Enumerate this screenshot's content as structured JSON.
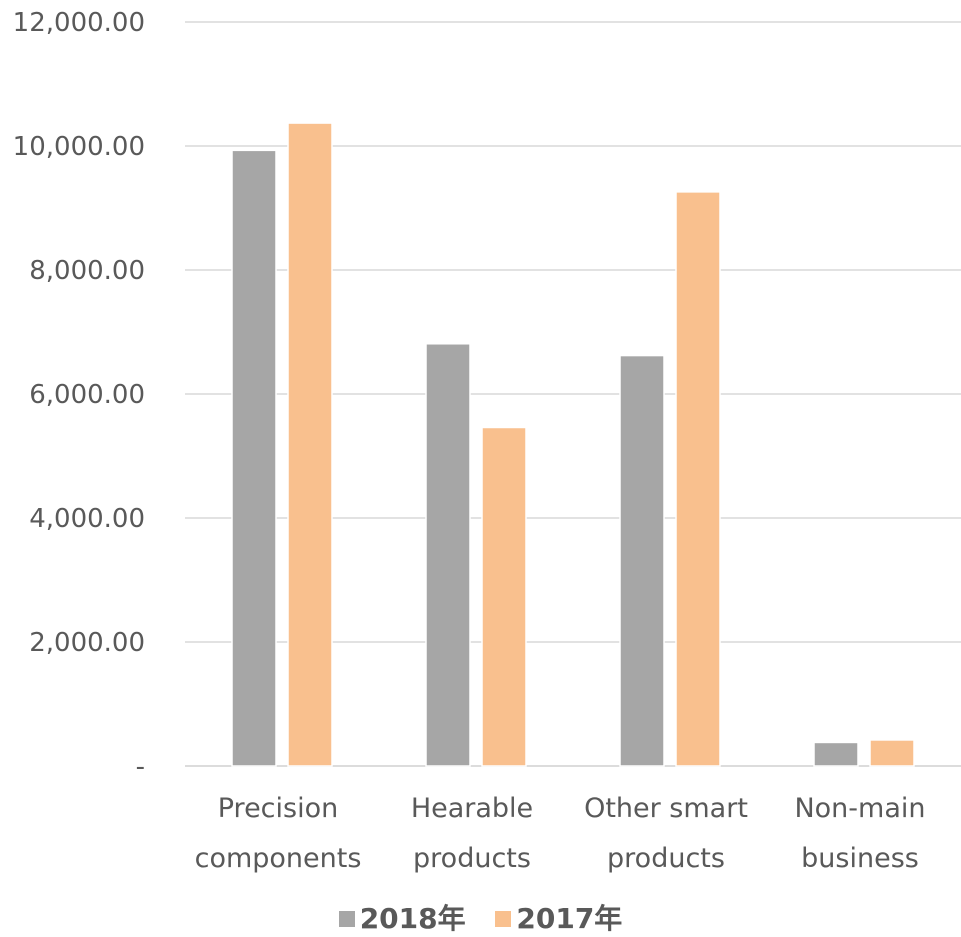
{
  "chart_data": {
    "type": "bar",
    "categories": [
      [
        "Precision",
        "components"
      ],
      [
        "Hearable",
        "products"
      ],
      [
        "Other smart",
        "products"
      ],
      [
        "Non-main",
        "business"
      ]
    ],
    "series": [
      {
        "name": "2018年",
        "color": "#a6a6a6",
        "values": [
          9930,
          6810,
          6620,
          380
        ]
      },
      {
        "name": "2017年",
        "color": "#f9c08e",
        "values": [
          10370,
          5460,
          9260,
          420
        ]
      }
    ],
    "ylim": [
      0,
      12000
    ],
    "yticks": [
      {
        "value": 0,
        "label": "-"
      },
      {
        "value": 2000,
        "label": "2,000.00"
      },
      {
        "value": 4000,
        "label": "4,000.00"
      },
      {
        "value": 6000,
        "label": "6,000.00"
      },
      {
        "value": 8000,
        "label": "8,000.00"
      },
      {
        "value": 10000,
        "label": "10,000.00"
      },
      {
        "value": 12000,
        "label": "12,000.00"
      }
    ],
    "grid": true,
    "legend": "bottom"
  }
}
